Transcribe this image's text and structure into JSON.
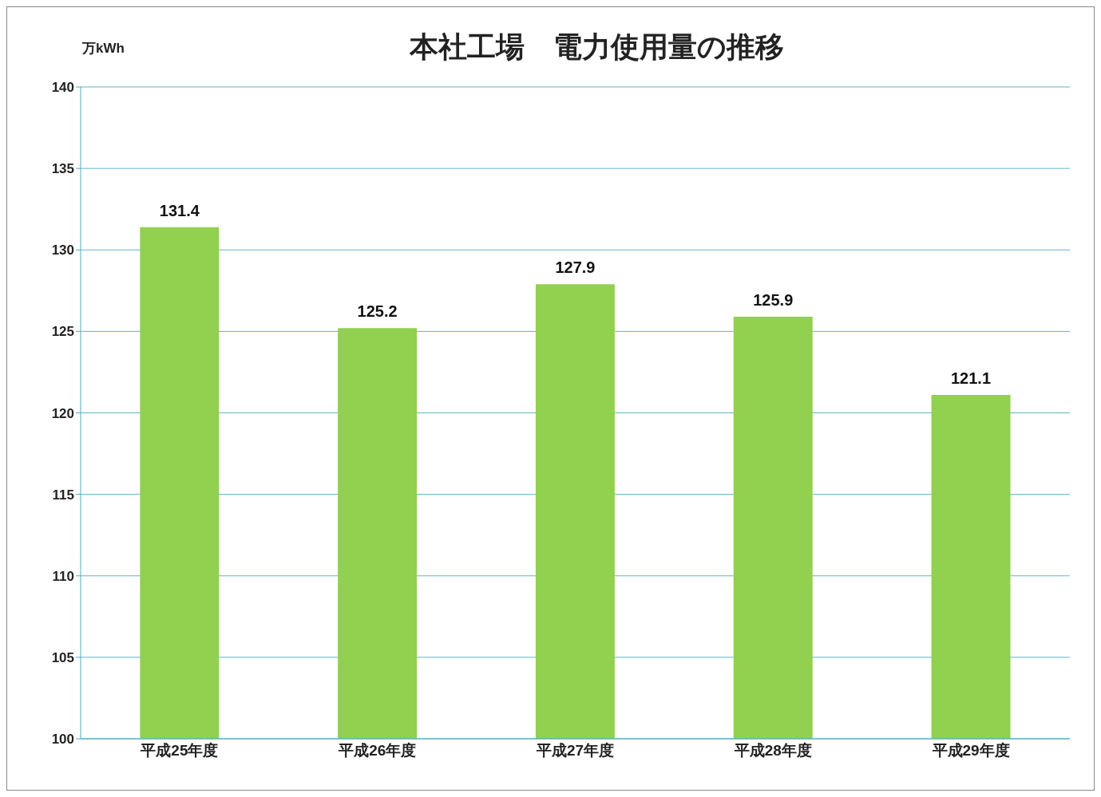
{
  "chart_data": {
    "type": "bar",
    "title": "本社工場　電力使用量の推移",
    "ylabel": "万kWh",
    "categories": [
      "平成25年度",
      "平成26年度",
      "平成27年度",
      "平成28年度",
      "平成29年度"
    ],
    "values": [
      131.4,
      125.2,
      127.9,
      125.9,
      121.1
    ],
    "color": "#92d050",
    "ylim": [
      100,
      140
    ],
    "yticks": [
      100,
      105,
      110,
      115,
      120,
      125,
      130,
      135,
      140
    ],
    "grid": "y",
    "data_labels": true
  }
}
